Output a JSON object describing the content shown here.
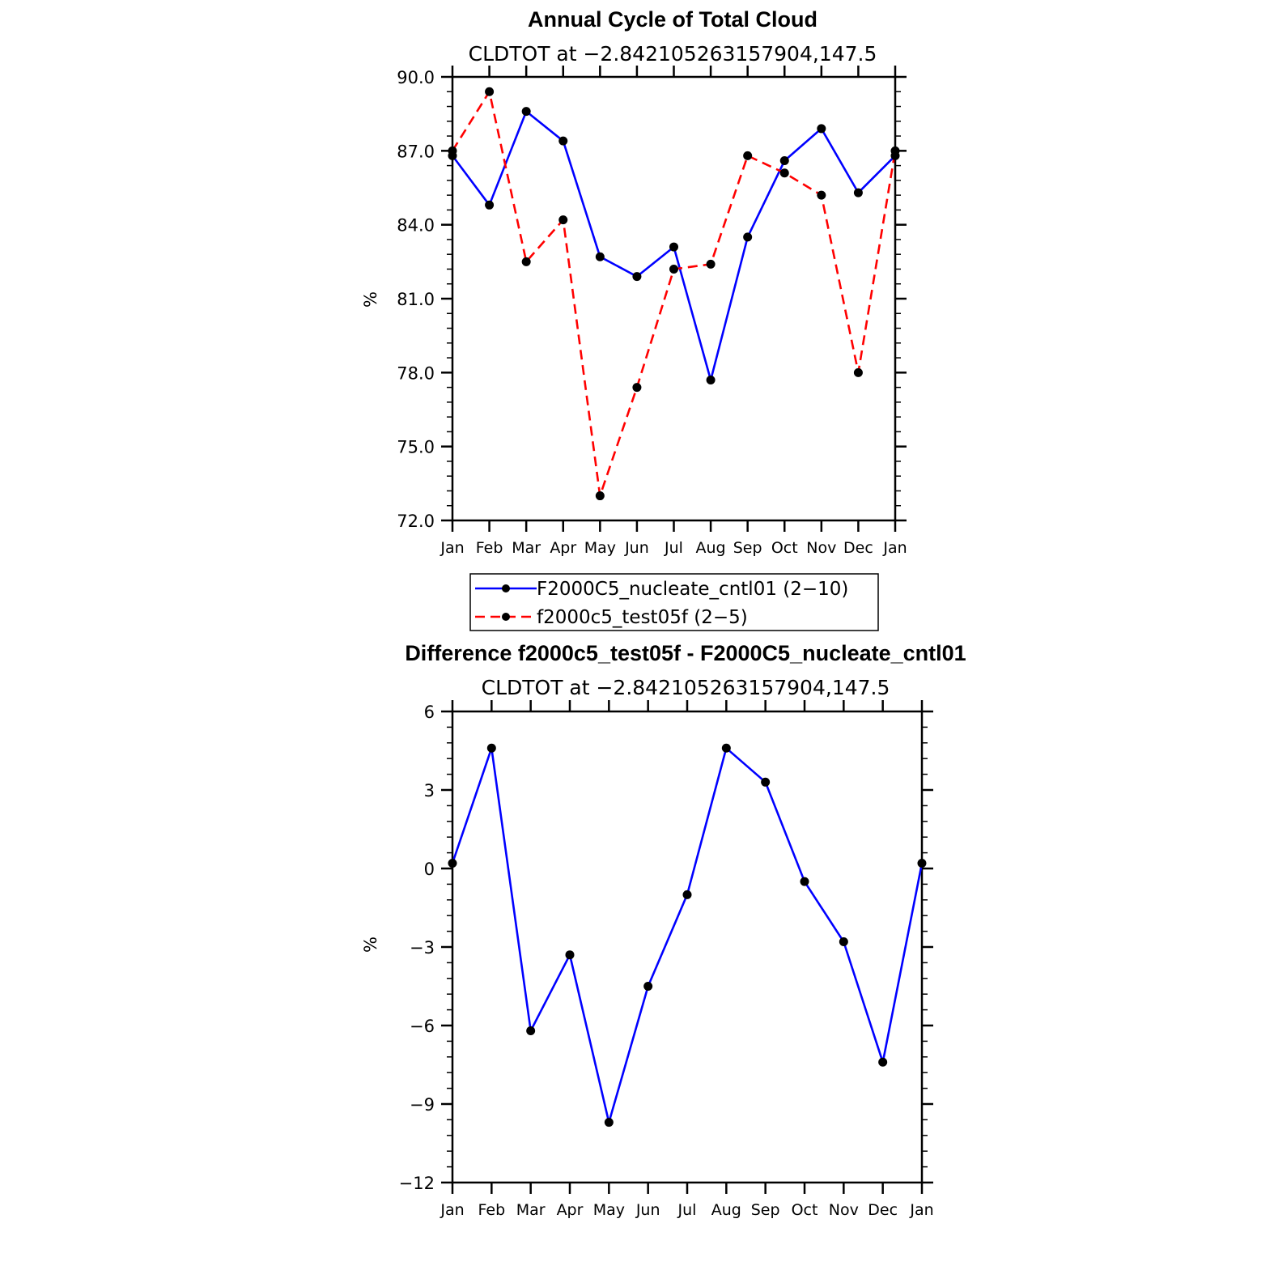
{
  "chart_data": [
    {
      "type": "line",
      "title": "Annual Cycle of Total Cloud",
      "subtitle": "CLDTOT at −2.842105263157904,147.5",
      "ylabel": "%",
      "ylim": [
        72.0,
        90.0
      ],
      "yticks": [
        "72.0",
        "75.0",
        "78.0",
        "81.0",
        "84.0",
        "87.0",
        "90.0"
      ],
      "categories": [
        "Jan",
        "Feb",
        "Mar",
        "Apr",
        "May",
        "Jun",
        "Jul",
        "Aug",
        "Sep",
        "Oct",
        "Nov",
        "Dec",
        "Jan"
      ],
      "series": [
        {
          "name": "F2000C5_nucleate_cntl01 (2−10)",
          "color": "#0000ff",
          "dash": "solid",
          "values": [
            86.8,
            84.8,
            88.6,
            87.4,
            82.7,
            81.9,
            83.1,
            77.7,
            83.5,
            86.6,
            87.9,
            85.3,
            86.8
          ]
        },
        {
          "name": "f2000c5_test05f (2−5)",
          "color": "#ff0000",
          "dash": "dashed",
          "values": [
            87.0,
            89.4,
            82.5,
            84.2,
            73.0,
            77.4,
            82.2,
            82.4,
            86.8,
            86.1,
            85.2,
            78.0,
            87.0
          ]
        }
      ],
      "legend": "below"
    },
    {
      "type": "line",
      "title": "Difference f2000c5_test05f - F2000C5_nucleate_cntl01",
      "subtitle": "CLDTOT at −2.842105263157904,147.5",
      "ylabel": "%",
      "ylim": [
        -12,
        6
      ],
      "yticks": [
        "−12",
        "−9",
        "−6",
        "−3",
        "0",
        "3",
        "6"
      ],
      "categories": [
        "Jan",
        "Feb",
        "Mar",
        "Apr",
        "May",
        "Jun",
        "Jul",
        "Aug",
        "Sep",
        "Oct",
        "Nov",
        "Dec",
        "Jan"
      ],
      "series": [
        {
          "color": "#0000ff",
          "dash": "solid",
          "values": [
            0.2,
            4.6,
            -6.2,
            -3.3,
            -9.7,
            -4.5,
            -1.0,
            4.6,
            3.3,
            -0.5,
            -2.8,
            -7.4,
            0.2
          ]
        }
      ]
    }
  ]
}
